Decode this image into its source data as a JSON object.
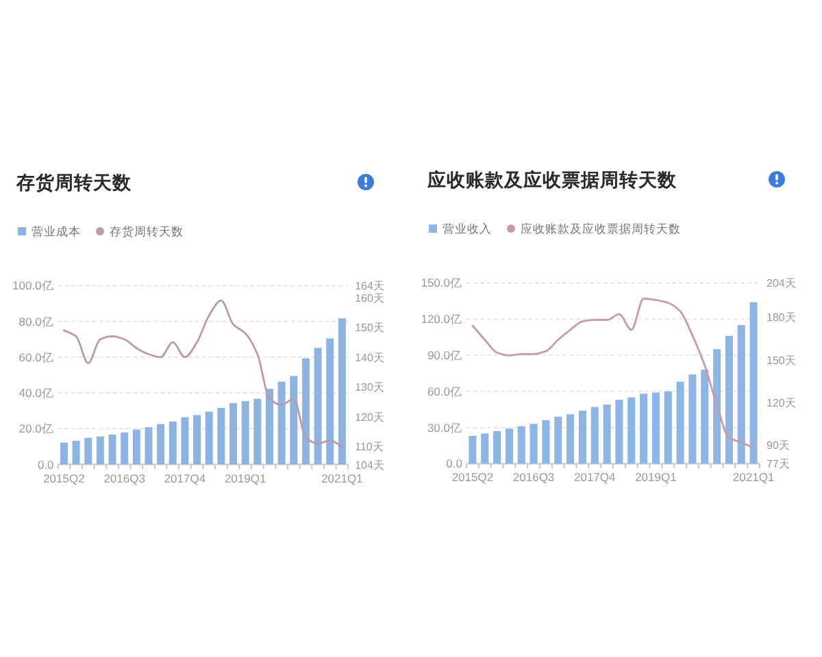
{
  "chart_data": [
    {
      "type": "bar",
      "title": "存货周转天数",
      "legend": "top left",
      "grid": "y",
      "categories": [
        "2015Q2",
        null,
        null,
        null,
        null,
        "2016Q3",
        null,
        null,
        null,
        null,
        "2017Q4",
        null,
        null,
        null,
        null,
        "2019Q1",
        null,
        null,
        null,
        null,
        null,
        null,
        null,
        "2021Q1"
      ],
      "series": [
        {
          "name": "营业成本",
          "color": "#8cb3e2",
          "values": [
            12.2,
            13.2,
            14.9,
            15.6,
            16.7,
            17.9,
            19.5,
            20.8,
            22.6,
            24.0,
            26.4,
            27.6,
            29.5,
            31.6,
            34.3,
            35.4,
            36.7,
            42.3,
            46.3,
            49.5,
            59.3,
            65.2,
            70.5,
            81.7
          ]
        },
        {
          "name": "存货周转天数",
          "type": "line",
          "axis": "y2",
          "color": "#bc9aa6",
          "values": [
            149,
            147,
            138,
            146,
            147,
            146,
            143,
            141,
            140,
            145,
            140,
            145,
            154,
            159,
            151,
            148,
            141,
            126,
            124,
            126,
            113,
            111,
            112,
            110
          ]
        }
      ],
      "ylim": [
        0,
        100
      ],
      "yticks": [
        {
          "value": 0,
          "label": "0.0"
        },
        {
          "value": 20,
          "label": "20.0亿"
        },
        {
          "value": 40,
          "label": "40.0亿"
        },
        {
          "value": 60,
          "label": "60.0亿"
        },
        {
          "value": 80,
          "label": "80.0亿"
        },
        {
          "value": 100,
          "label": "100.0亿"
        }
      ],
      "y2lim": [
        104,
        164
      ],
      "y2ticks": [
        {
          "value": 104,
          "label": "104天"
        },
        {
          "value": 110,
          "label": "110天"
        },
        {
          "value": 120,
          "label": "120天"
        },
        {
          "value": 130,
          "label": "130天"
        },
        {
          "value": 140,
          "label": "140天"
        },
        {
          "value": 150,
          "label": "150天"
        },
        {
          "value": 160,
          "label": "160天"
        },
        {
          "value": 164,
          "label": "164天"
        }
      ]
    },
    {
      "type": "bar",
      "title": "应收账款及应收票据周转天数",
      "legend": "top left",
      "grid": "y",
      "categories": [
        "2015Q2",
        null,
        null,
        null,
        null,
        "2016Q3",
        null,
        null,
        null,
        null,
        "2017Q4",
        null,
        null,
        null,
        null,
        "2019Q1",
        null,
        null,
        null,
        null,
        null,
        null,
        null,
        "2021Q1"
      ],
      "series": [
        {
          "name": "营业收入",
          "color": "#8db5e6",
          "values": [
            23,
            25,
            27,
            29,
            31,
            33,
            36,
            39,
            41,
            44,
            47,
            49,
            53,
            55,
            58,
            59,
            60,
            68,
            74,
            78,
            95,
            106,
            115,
            134
          ]
        },
        {
          "name": "应收账款及应收票据周转天数",
          "type": "line",
          "axis": "y2",
          "color": "#c99ba3",
          "values": [
            174,
            164,
            155,
            153,
            154,
            154,
            156,
            164,
            171,
            177,
            178,
            178,
            182,
            171,
            193,
            192,
            190,
            184,
            167,
            146,
            118,
            95,
            92,
            88
          ]
        }
      ],
      "ylim": [
        0,
        150
      ],
      "yticks": [
        {
          "value": 0,
          "label": "0.0"
        },
        {
          "value": 30,
          "label": "30.0亿"
        },
        {
          "value": 60,
          "label": "60.0亿"
        },
        {
          "value": 90,
          "label": "90.0亿"
        },
        {
          "value": 120,
          "label": "120.0亿"
        },
        {
          "value": 150,
          "label": "150.0亿"
        }
      ],
      "y2lim": [
        77,
        204
      ],
      "y2ticks": [
        {
          "value": 77,
          "label": "77天"
        },
        {
          "value": 90,
          "label": "90天"
        },
        {
          "value": 120,
          "label": "120天"
        },
        {
          "value": 150,
          "label": "150天"
        },
        {
          "value": 180,
          "label": "180天"
        },
        {
          "value": 204,
          "label": "204天"
        }
      ]
    }
  ]
}
